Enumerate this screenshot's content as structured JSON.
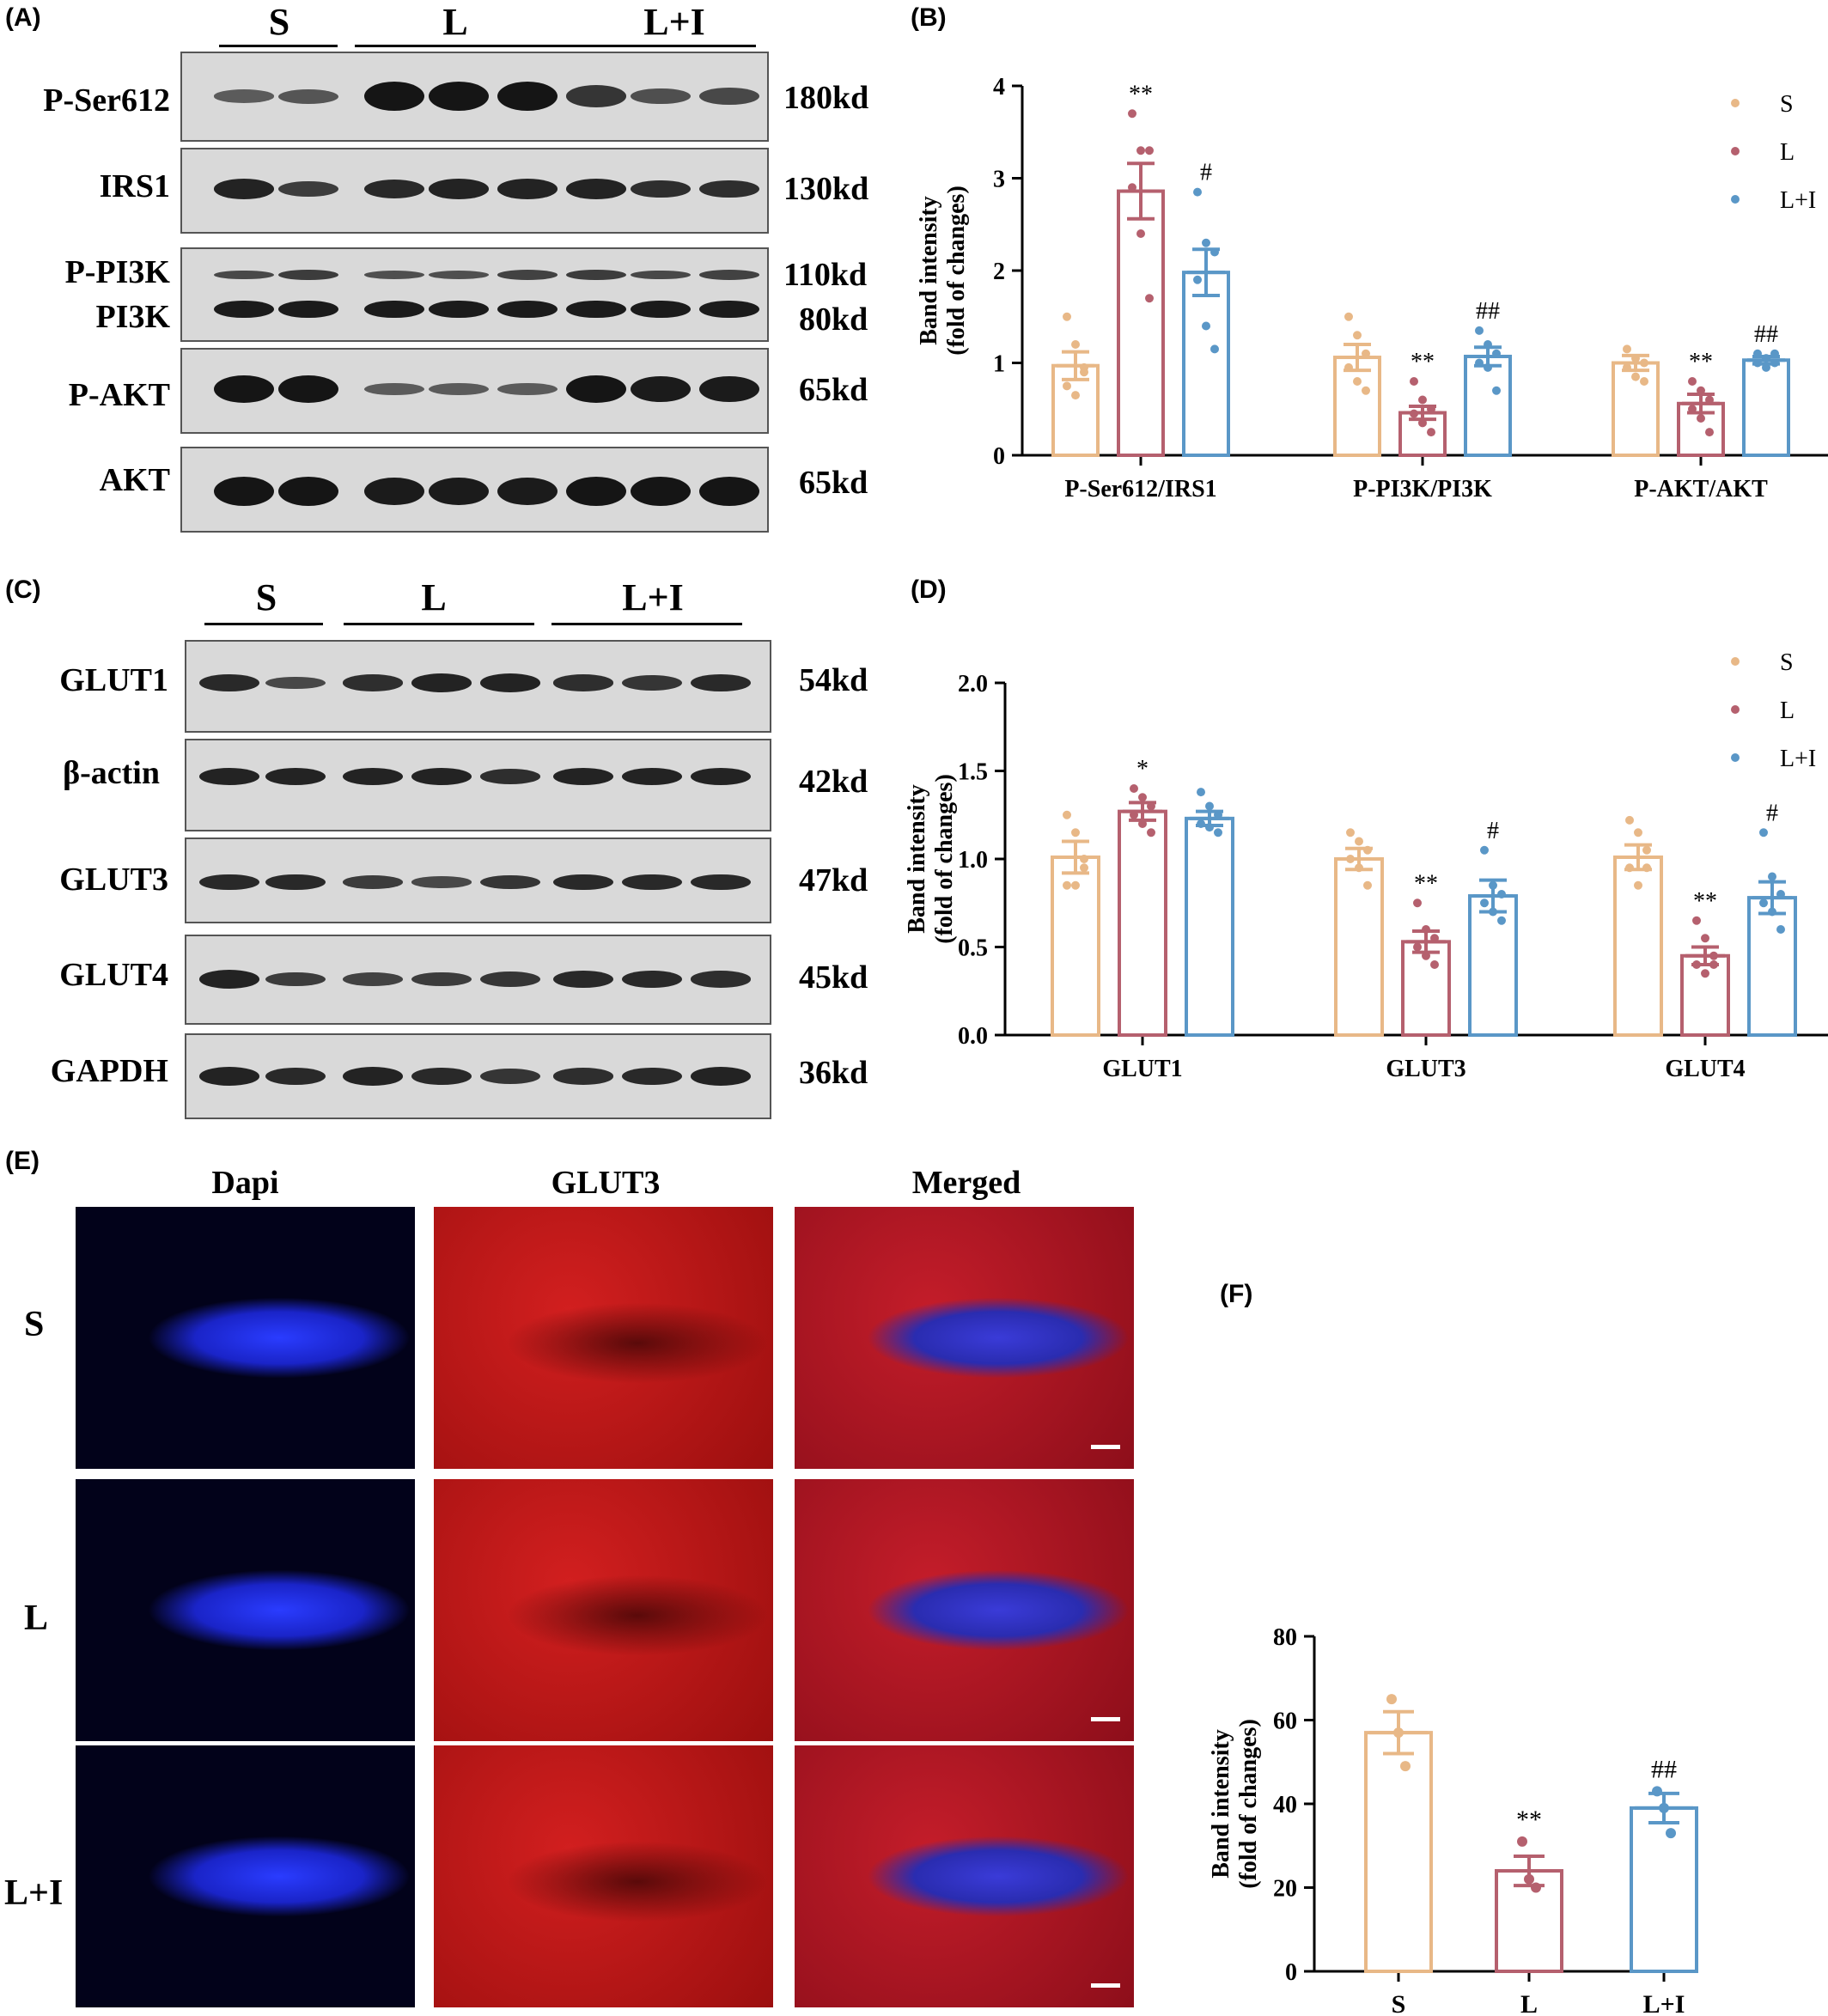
{
  "panels": {
    "a": "(A)",
    "b": "(B)",
    "c": "(C)",
    "d": "(D)",
    "e": "(E)",
    "f": "(F)"
  },
  "groups": [
    "S",
    "L",
    "L+I"
  ],
  "blot_a": {
    "rows": [
      {
        "label": "P-Ser612",
        "kd": "180kd"
      },
      {
        "label": "IRS1",
        "kd": "130kd"
      },
      {
        "label": "P-PI3K",
        "kd": "110kd"
      },
      {
        "label": "PI3K",
        "kd": "80kd"
      },
      {
        "label": "P-AKT",
        "kd": "65kd"
      },
      {
        "label": "AKT",
        "kd": "65kd"
      }
    ]
  },
  "blot_c": {
    "rows": [
      {
        "label": "GLUT1",
        "kd": "54kd"
      },
      {
        "label": "β-actin",
        "kd": "42kd"
      },
      {
        "label": "GLUT3",
        "kd": "47kd"
      },
      {
        "label": "GLUT4",
        "kd": "45kd"
      },
      {
        "label": "GAPDH",
        "kd": "36kd"
      }
    ]
  },
  "if_panel": {
    "columns": [
      "Dapi",
      "GLUT3",
      "Merged"
    ],
    "rows": [
      "S",
      "L",
      "L+I"
    ]
  },
  "colors": {
    "S": "#e8b887",
    "L": "#b5606e",
    "LI": "#5a97c7"
  },
  "chart_data": [
    {
      "id": "B",
      "type": "bar",
      "categories": [
        "P-Ser612/IRS1",
        "P-PI3K/PI3K",
        "P-AKT/AKT"
      ],
      "ylabel": [
        "Band intensity",
        "(fold of changes)"
      ],
      "ylim": [
        0,
        4
      ],
      "yticks": [
        "0",
        "1",
        "2",
        "3",
        "4"
      ],
      "legend": [
        "S",
        "L",
        "L+I"
      ],
      "series": [
        {
          "name": "S",
          "values": [
            0.97,
            1.06,
            1.0
          ],
          "err": [
            0.15,
            0.14,
            0.08
          ],
          "points": [
            [
              1.5,
              1.2,
              0.9,
              0.75,
              0.65,
              0.95
            ],
            [
              1.5,
              1.3,
              1.1,
              0.95,
              0.8,
              0.7
            ],
            [
              1.15,
              1.05,
              1.0,
              0.95,
              0.85,
              0.8
            ]
          ]
        },
        {
          "name": "L",
          "values": [
            2.86,
            0.46,
            0.56
          ],
          "err": [
            0.3,
            0.07,
            0.1
          ],
          "points": [
            [
              3.7,
              3.3,
              3.3,
              2.9,
              2.4,
              1.7
            ],
            [
              0.8,
              0.6,
              0.5,
              0.45,
              0.35,
              0.25
            ],
            [
              0.8,
              0.7,
              0.6,
              0.5,
              0.4,
              0.25
            ]
          ]
        },
        {
          "name": "L+I",
          "values": [
            1.98,
            1.07,
            1.03
          ],
          "err": [
            0.25,
            0.1,
            0.04
          ],
          "points": [
            [
              2.85,
              2.3,
              2.2,
              1.9,
              1.4,
              1.15
            ],
            [
              1.35,
              1.2,
              1.1,
              1.0,
              0.95,
              0.7
            ],
            [
              1.1,
              1.05,
              1.0,
              1.0,
              0.95,
              1.1
            ]
          ]
        }
      ],
      "annotations": [
        [
          "",
          "",
          ""
        ],
        [
          "**",
          "**",
          "**"
        ],
        [
          "#",
          "##",
          "##"
        ]
      ]
    },
    {
      "id": "D",
      "type": "bar",
      "categories": [
        "GLUT1",
        "GLUT3",
        "GLUT4"
      ],
      "ylabel": [
        "Band intensity",
        "(fold of changes)"
      ],
      "ylim": [
        0,
        2
      ],
      "yticks": [
        "0.0",
        "0.5",
        "1.0",
        "1.5",
        "2.0"
      ],
      "legend": [
        "S",
        "L",
        "L+I"
      ],
      "series": [
        {
          "name": "S",
          "values": [
            1.01,
            1.0,
            1.01
          ],
          "err": [
            0.09,
            0.06,
            0.07
          ],
          "points": [
            [
              1.25,
              1.15,
              1.0,
              0.85,
              0.85,
              0.95
            ],
            [
              1.15,
              1.1,
              1.05,
              1.0,
              0.95,
              0.85
            ],
            [
              1.22,
              1.15,
              1.05,
              0.95,
              0.85,
              0.95
            ]
          ]
        },
        {
          "name": "L",
          "values": [
            1.27,
            0.53,
            0.45
          ],
          "err": [
            0.05,
            0.06,
            0.05
          ],
          "points": [
            [
              1.4,
              1.35,
              1.3,
              1.25,
              1.2,
              1.15
            ],
            [
              0.75,
              0.6,
              0.55,
              0.5,
              0.45,
              0.4
            ],
            [
              0.65,
              0.55,
              0.45,
              0.4,
              0.35,
              0.4
            ]
          ]
        },
        {
          "name": "L+I",
          "values": [
            1.23,
            0.79,
            0.78
          ],
          "err": [
            0.04,
            0.09,
            0.09
          ],
          "points": [
            [
              1.38,
              1.3,
              1.25,
              1.2,
              1.18,
              1.15
            ],
            [
              1.05,
              0.85,
              0.8,
              0.75,
              0.7,
              0.65
            ],
            [
              1.15,
              0.9,
              0.8,
              0.75,
              0.7,
              0.6
            ]
          ]
        }
      ],
      "annotations": [
        [
          "",
          "",
          ""
        ],
        [
          "*",
          "**",
          "**"
        ],
        [
          "",
          "#",
          "#"
        ]
      ]
    },
    {
      "id": "F",
      "type": "bar",
      "categories": [
        "S",
        "L",
        "L+I"
      ],
      "ylabel": [
        "Band intensity",
        "(fold of changes)"
      ],
      "ylim": [
        0,
        80
      ],
      "yticks": [
        "0",
        "20",
        "40",
        "60",
        "80"
      ],
      "values": [
        57,
        24,
        39
      ],
      "err": [
        5,
        3.5,
        3.5
      ],
      "points": [
        [
          65,
          57,
          49
        ],
        [
          31,
          22,
          20
        ],
        [
          43,
          39,
          33
        ]
      ],
      "annotations": [
        "",
        "**",
        "##"
      ]
    }
  ]
}
